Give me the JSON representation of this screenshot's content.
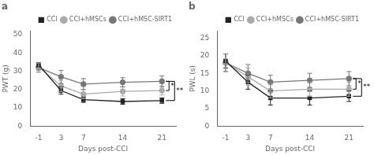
{
  "chart_data": [
    {
      "type": "line",
      "title": "a",
      "x_label": "Days post-CCI",
      "y_label": "PWT (g)",
      "x": [
        -1,
        3,
        7,
        14,
        21
      ],
      "xlim": [
        -2.5,
        23.5
      ],
      "xticks": [
        -1,
        3,
        7,
        14,
        21
      ],
      "ylim": [
        0,
        52
      ],
      "yticks": [
        0,
        10,
        20,
        30,
        40,
        50
      ],
      "grid": false,
      "legend": "upper right",
      "series": [
        {
          "name": "CCI",
          "color": "#222222",
          "marker": "square",
          "values": [
            33.5,
            19.5,
            14.5,
            13.5,
            14.0
          ],
          "errors": [
            1.2,
            2.0,
            1.5,
            1.5,
            1.5
          ]
        },
        {
          "name": "CCI+hMSCs",
          "color": "#aaaaaa",
          "marker": "circle",
          "values": [
            32.5,
            22.0,
            17.5,
            19.0,
            19.5
          ],
          "errors": [
            2.0,
            3.0,
            2.5,
            2.5,
            2.5
          ]
        },
        {
          "name": "CCI+hMSC-SIRT1",
          "color": "#777777",
          "marker": "circle",
          "values": [
            32.0,
            27.0,
            23.0,
            24.0,
            24.5
          ],
          "errors": [
            2.5,
            3.5,
            3.0,
            2.5,
            3.0
          ]
        }
      ],
      "annotations": [
        {
          "text": "*",
          "between": [
            "CCI+hMSC-SIRT1",
            "CCI+hMSCs"
          ]
        },
        {
          "text": "**",
          "between": [
            "CCI+hMSC-SIRT1",
            "CCI"
          ]
        }
      ]
    },
    {
      "type": "line",
      "title": "b",
      "x_label": "Days post-CCI",
      "y_label": "PWL (s)",
      "x": [
        -1,
        3,
        7,
        14,
        21
      ],
      "xlim": [
        -2.5,
        23.5
      ],
      "xticks": [
        -1,
        3,
        7,
        14,
        21
      ],
      "ylim": [
        0,
        27
      ],
      "yticks": [
        0,
        5,
        10,
        15,
        20,
        25
      ],
      "grid": false,
      "legend": "upper right",
      "series": [
        {
          "name": "CCI",
          "color": "#222222",
          "marker": "square",
          "values": [
            18.5,
            12.5,
            8.0,
            8.0,
            8.5
          ],
          "errors": [
            2.0,
            2.0,
            2.0,
            2.0,
            1.5
          ]
        },
        {
          "name": "CCI+hMSCs",
          "color": "#aaaaaa",
          "marker": "circle",
          "values": [
            18.0,
            14.0,
            10.0,
            10.5,
            10.5
          ],
          "errors": [
            2.5,
            2.5,
            2.0,
            2.0,
            2.0
          ]
        },
        {
          "name": "CCI+hMSC-SIRT1",
          "color": "#777777",
          "marker": "circle",
          "values": [
            18.0,
            15.0,
            12.5,
            13.0,
            13.5
          ],
          "errors": [
            2.5,
            2.5,
            2.0,
            2.0,
            2.0
          ]
        }
      ],
      "annotations": [
        {
          "text": "*",
          "between": [
            "CCI+hMSC-SIRT1",
            "CCI+hMSCs"
          ]
        },
        {
          "text": "**",
          "between": [
            "CCI+hMSC-SIRT1",
            "CCI"
          ]
        }
      ]
    }
  ]
}
